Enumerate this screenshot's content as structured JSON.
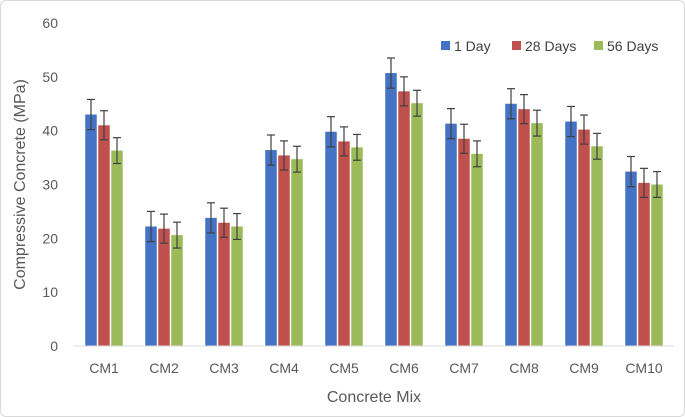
{
  "chart_data": {
    "type": "bar",
    "title": "",
    "xlabel": "Concrete Mix",
    "ylabel": "Compressive Concrete (MPa)",
    "ylim": [
      0,
      60
    ],
    "yticks": [
      "0",
      "10",
      "20",
      "30",
      "40",
      "50",
      "60"
    ],
    "grid": false,
    "legend_position": "top-right",
    "categories": [
      "CM1",
      "CM2",
      "CM3",
      "CM4",
      "CM5",
      "CM6",
      "CM7",
      "CM8",
      "CM9",
      "CM10"
    ],
    "series": [
      {
        "name": "1 Day",
        "color": "#4472c4",
        "values": [
          43.0,
          22.2,
          23.8,
          36.4,
          39.8,
          50.7,
          41.3,
          45.0,
          41.7,
          32.4
        ],
        "errors": [
          2.8,
          2.8,
          2.8,
          2.8,
          2.8,
          2.8,
          2.8,
          2.8,
          2.8,
          2.8
        ]
      },
      {
        "name": "28 Days",
        "color": "#c0504d",
        "values": [
          41.0,
          21.8,
          22.9,
          35.4,
          38.0,
          47.3,
          38.5,
          44.0,
          40.2,
          30.3
        ],
        "errors": [
          2.7,
          2.7,
          2.7,
          2.7,
          2.7,
          2.7,
          2.7,
          2.7,
          2.7,
          2.7
        ]
      },
      {
        "name": "56 Days",
        "color": "#9bbb59",
        "values": [
          36.3,
          20.6,
          22.2,
          34.7,
          36.9,
          45.1,
          35.7,
          41.4,
          37.1,
          30.0
        ],
        "errors": [
          2.4,
          2.4,
          2.4,
          2.4,
          2.4,
          2.4,
          2.4,
          2.4,
          2.4,
          2.4
        ]
      }
    ]
  }
}
